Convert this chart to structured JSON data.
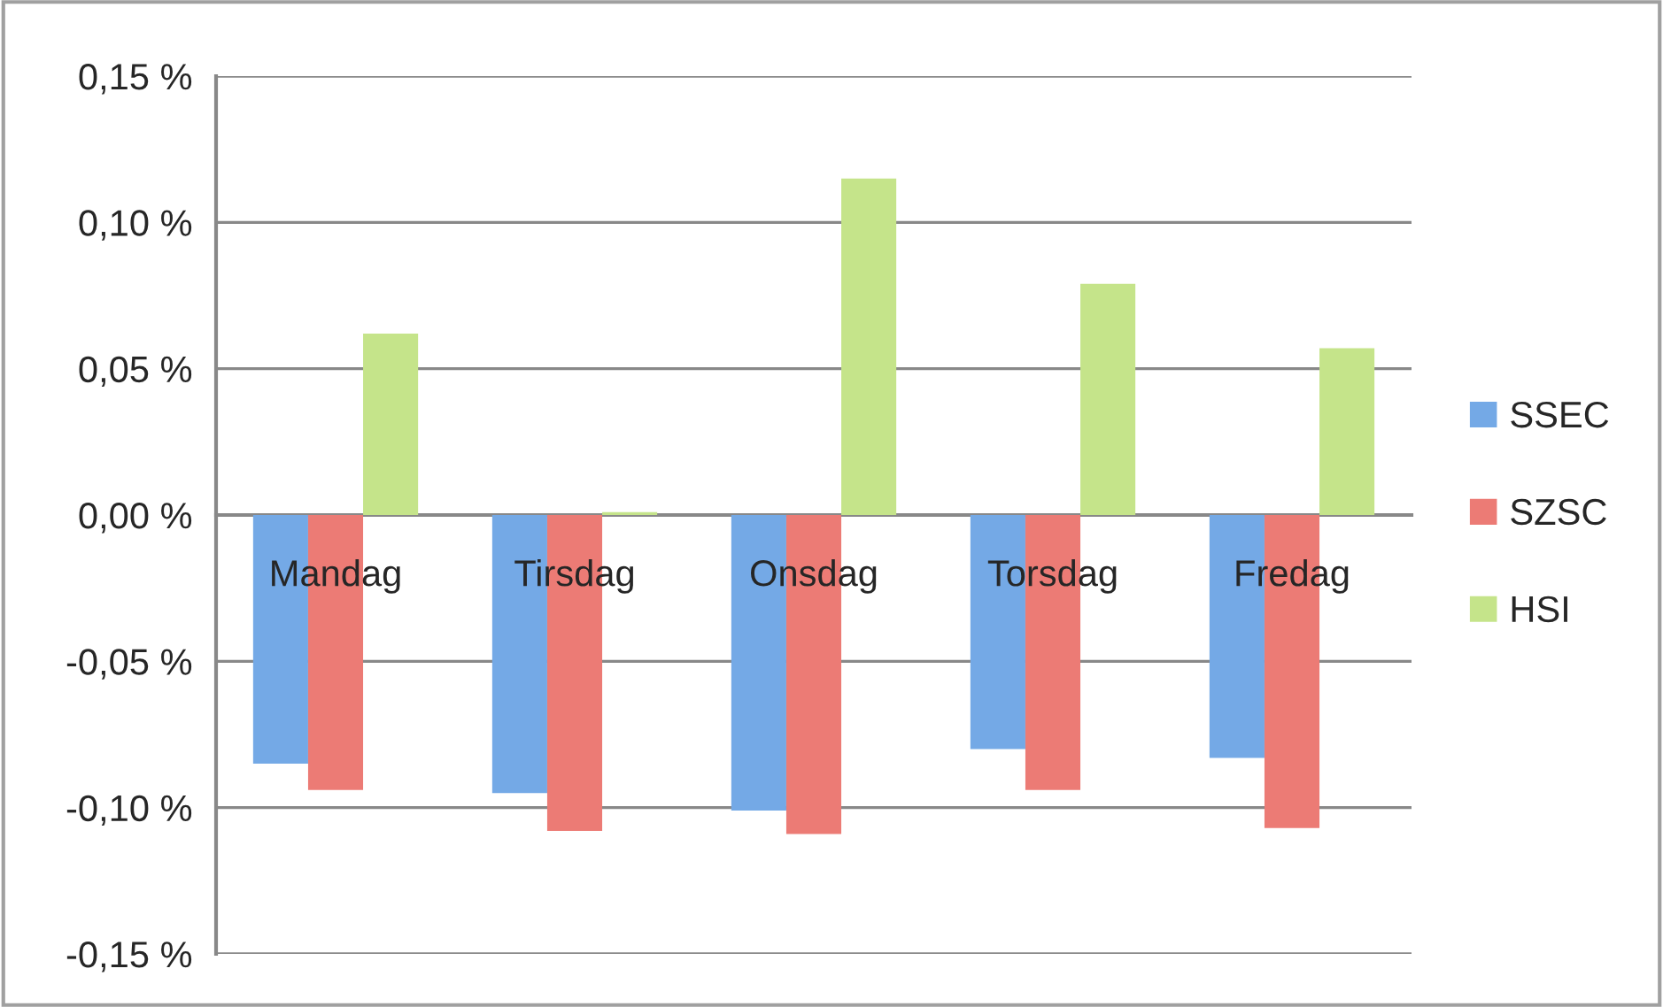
{
  "chart_data": {
    "type": "bar",
    "categories": [
      "Mandag",
      "Tirsdag",
      "Onsdag",
      "Torsdag",
      "Fredag"
    ],
    "series": [
      {
        "name": "SSEC",
        "color": "#74a9e6",
        "values": [
          -0.085,
          -0.095,
          -0.101,
          -0.08,
          -0.083
        ]
      },
      {
        "name": "SZSC",
        "color": "#ec7b75",
        "values": [
          -0.094,
          -0.108,
          -0.109,
          -0.094,
          -0.107
        ]
      },
      {
        "name": "HSI",
        "color": "#c5e48a",
        "values": [
          0.062,
          0.001,
          0.115,
          0.079,
          0.057
        ]
      }
    ],
    "ylim": [
      -0.15,
      0.15
    ],
    "yticks": [
      {
        "value": -0.15,
        "label": "-0,15 %"
      },
      {
        "value": -0.1,
        "label": "-0,10 %"
      },
      {
        "value": -0.05,
        "label": "-0,05 %"
      },
      {
        "value": 0,
        "label": "0,00 %"
      },
      {
        "value": 0.05,
        "label": "0,05 %"
      },
      {
        "value": 0.1,
        "label": "0,10 %"
      },
      {
        "value": 0.15,
        "label": "0,15 %"
      }
    ],
    "grid": "y",
    "legend": "right"
  }
}
